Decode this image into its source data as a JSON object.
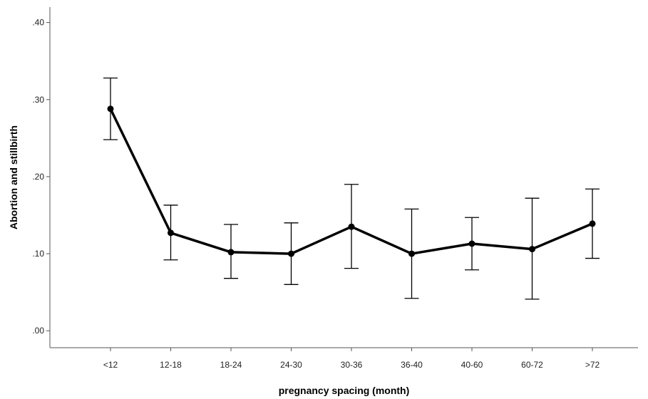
{
  "chart_data": {
    "type": "line",
    "title": "",
    "xlabel": "pregnancy spacing (month)",
    "ylabel": "Abortion and stillbirth",
    "categories": [
      "<12",
      "12-18",
      "18-24",
      "24-30",
      "30-36",
      "36-40",
      "40-60",
      "60-72",
      ">72"
    ],
    "series": [
      {
        "values": [
          0.288,
          0.127,
          0.102,
          0.1,
          0.135,
          0.1,
          0.113,
          0.106,
          0.139
        ],
        "error_low": [
          0.248,
          0.092,
          0.068,
          0.06,
          0.081,
          0.042,
          0.079,
          0.041,
          0.094
        ],
        "error_high": [
          0.328,
          0.163,
          0.138,
          0.14,
          0.19,
          0.158,
          0.147,
          0.172,
          0.184
        ]
      }
    ],
    "yticks": [
      ".00",
      ".10",
      ".20",
      ".30",
      ".40"
    ],
    "ytick_values": [
      0,
      0.1,
      0.2,
      0.3,
      0.4
    ],
    "ylim": [
      -0.022,
      0.42
    ],
    "grid": false,
    "color": "#000000"
  }
}
